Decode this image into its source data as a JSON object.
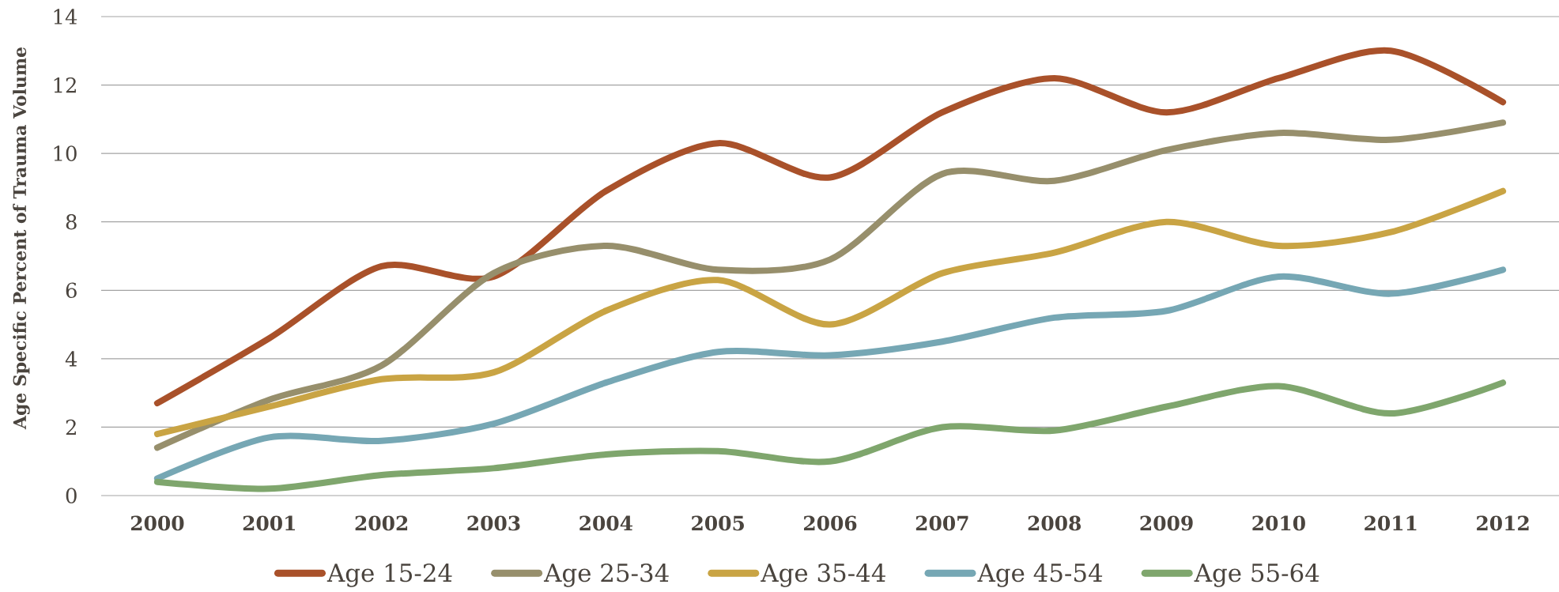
{
  "chart_data": {
    "type": "line",
    "ylabel": "Age Specific Percent of Trauma Volume",
    "categories": [
      "2000",
      "2001",
      "2002",
      "2003",
      "2004",
      "2005",
      "2006",
      "2007",
      "2008",
      "2009",
      "2010",
      "2011",
      "2012"
    ],
    "series": [
      {
        "name": "Age 15-24",
        "color": "#a9512a",
        "values": [
          2.7,
          4.6,
          6.7,
          6.4,
          8.9,
          10.3,
          9.3,
          11.2,
          12.2,
          11.2,
          12.2,
          13.0,
          11.5
        ]
      },
      {
        "name": "Age 25-34",
        "color": "#978f6c",
        "values": [
          1.4,
          2.8,
          3.8,
          6.5,
          7.3,
          6.6,
          6.9,
          9.4,
          9.2,
          10.1,
          10.6,
          10.4,
          10.9
        ]
      },
      {
        "name": "Age 35-44",
        "color": "#c9a444",
        "values": [
          1.8,
          2.6,
          3.4,
          3.6,
          5.4,
          6.3,
          5.0,
          6.5,
          7.1,
          8.0,
          7.3,
          7.7,
          8.9
        ]
      },
      {
        "name": "Age 45-54",
        "color": "#76a7b4",
        "values": [
          0.5,
          1.7,
          1.6,
          2.1,
          3.3,
          4.2,
          4.1,
          4.5,
          5.2,
          5.4,
          6.4,
          5.9,
          6.6
        ]
      },
      {
        "name": "Age 55-64",
        "color": "#7fa66d",
        "values": [
          0.4,
          0.2,
          0.6,
          0.8,
          1.2,
          1.3,
          1.0,
          2.0,
          1.9,
          2.6,
          3.2,
          2.4,
          3.3
        ]
      }
    ],
    "ylim": [
      0,
      14
    ],
    "yticks": [
      0,
      2,
      4,
      6,
      8,
      10,
      12,
      14
    ],
    "grid": "y",
    "legend": "bottom",
    "marker": "none",
    "line_style": "solid"
  }
}
